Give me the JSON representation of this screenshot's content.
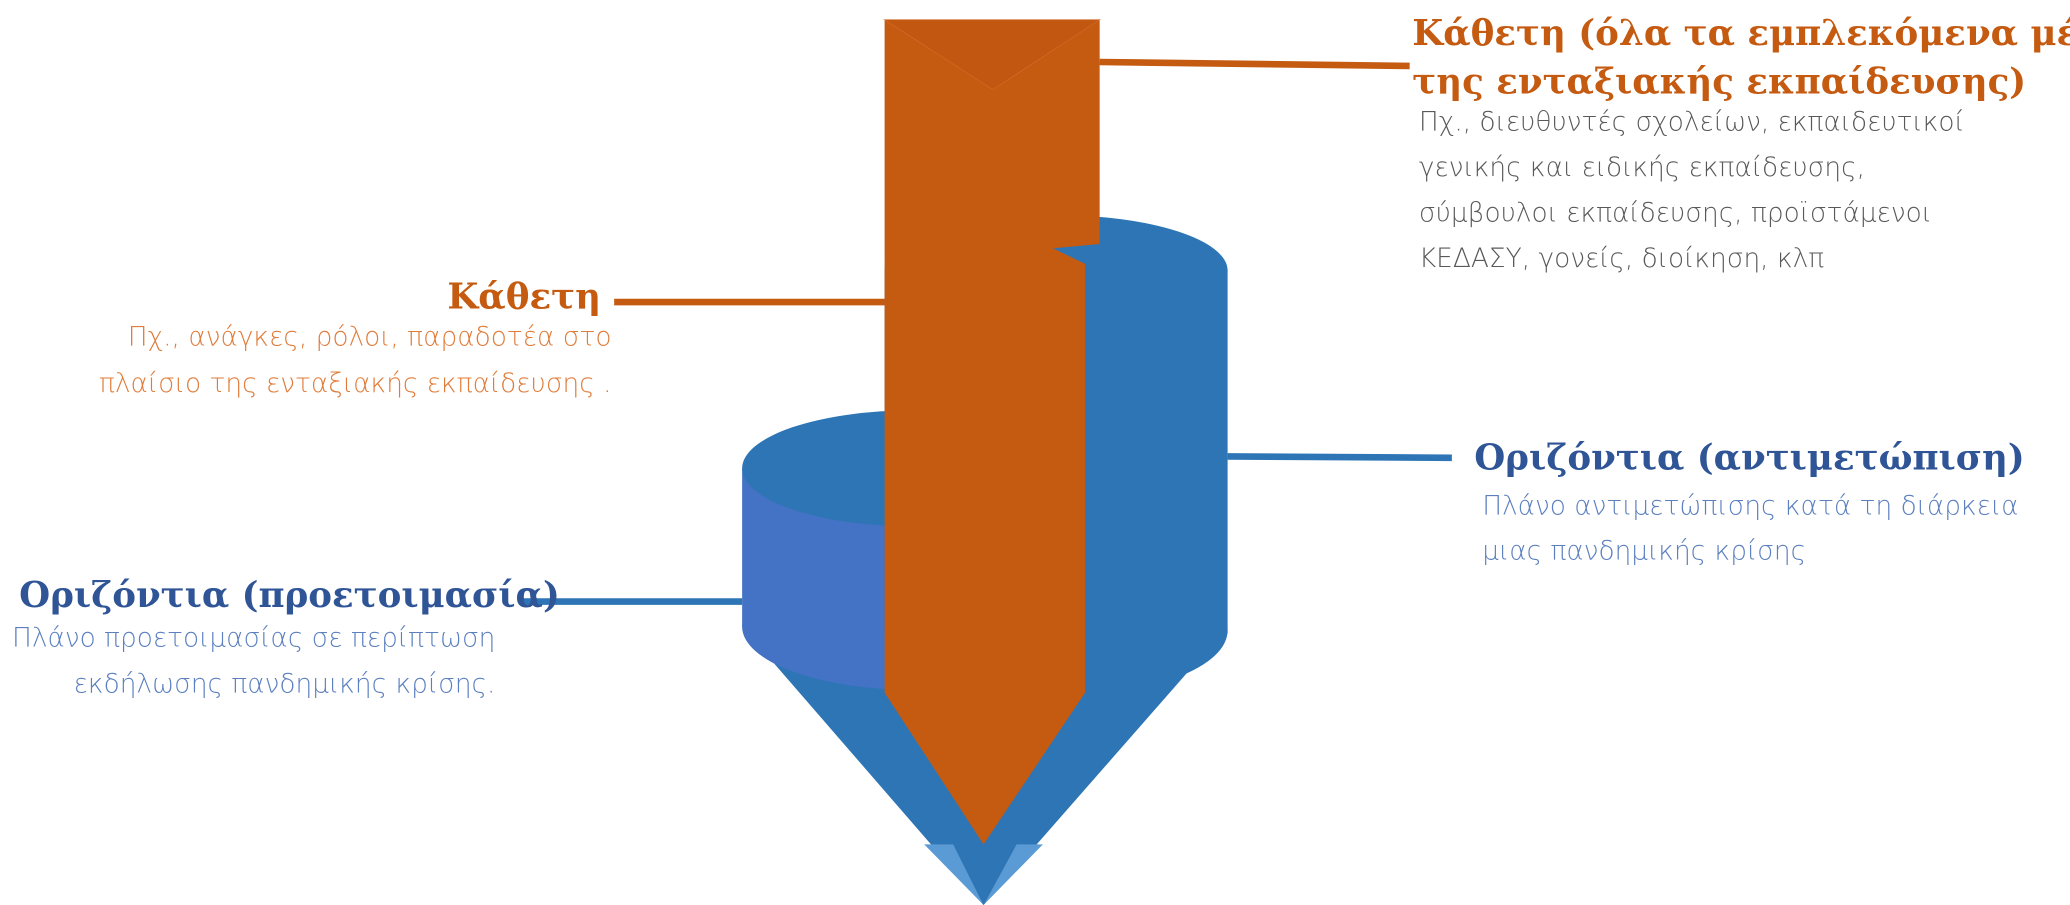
{
  "blocks": [
    {
      "title": [
        "Κάθετη (όλα τα εμπλεκόμενα μέρη",
        "της ενταξιακής εκπαίδευσης)"
      ],
      "description": [
        "Πχ., διευθυντές σχολείων, εκπαιδευτικοί",
        "γενικής και ειδικής εκπαίδευσης,",
        "σύμβουλοι εκπαίδευσης, προϊστάμενοι",
        "ΚΕΔΑΣΥ, γονείς, διοίκηση, κλπ"
      ]
    },
    {
      "title": [
        "Κάθετη"
      ],
      "description": [
        "Πχ., ανάγκες, ρόλοι, παραδοτέα στο",
        "πλαίσιο της ενταξιακής εκπαίδευσης ."
      ]
    },
    {
      "title": [
        "Οριζόντια (αντιμετώπιση)"
      ],
      "description": [
        "Πλάνο αντιμετώπισης κατά τη διάρκεια",
        "μιας πανδημικής κρίσης"
      ]
    },
    {
      "title": [
        "Οριζόντια (προετοιμασία)"
      ],
      "description": [
        "Πλάνο προετοιμασίας σε περίπτωση",
        "εκδήλωσης πανδημικής κρίσης."
      ]
    }
  ]
}
